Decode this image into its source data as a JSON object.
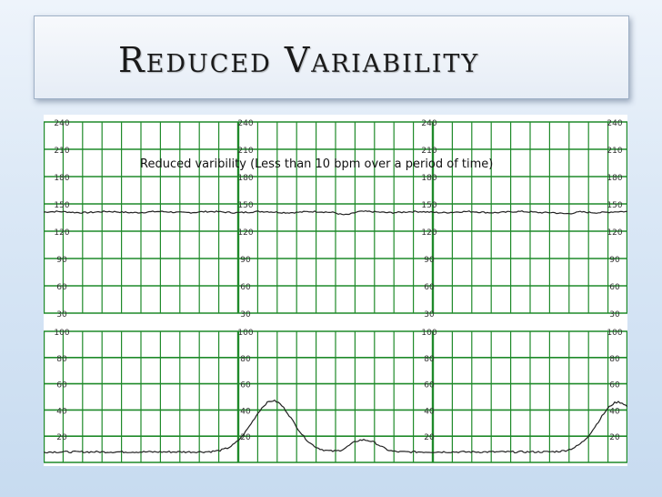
{
  "slide": {
    "title": "Reduced Variability",
    "annotation": "Reduced varibility (Less than 10 bpm over a period of time)"
  },
  "fhr_panel": {
    "labels": [
      "240",
      "210",
      "180",
      "150",
      "120",
      "90",
      "60",
      "30"
    ],
    "grid_color": "#1f8a2a",
    "trace_color": "#222222"
  },
  "uc_panel": {
    "labels": [
      "100",
      "80",
      "60",
      "40",
      "20"
    ]
  }
}
